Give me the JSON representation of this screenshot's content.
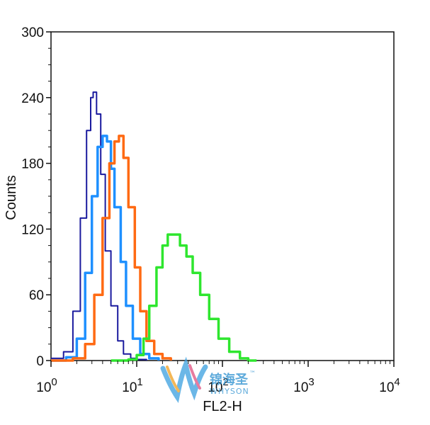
{
  "chart_data": {
    "type": "line",
    "title": "",
    "xlabel": "FL2-H",
    "ylabel": "Counts",
    "x_scale": "log",
    "xlim": [
      1,
      10000
    ],
    "ylim": [
      0,
      300
    ],
    "x_ticks": [
      {
        "value": 1,
        "base": "10",
        "exp": "0"
      },
      {
        "value": 10,
        "base": "10",
        "exp": "1"
      },
      {
        "value": 100,
        "base": "10",
        "exp": "2"
      },
      {
        "value": 1000,
        "base": "10",
        "exp": "3"
      },
      {
        "value": 10000,
        "base": "10",
        "exp": "4"
      }
    ],
    "y_ticks": [
      0,
      60,
      120,
      180,
      240,
      300
    ],
    "grid": false,
    "series": [
      {
        "color": "#1a1a9e",
        "x": [
          1,
          1.4,
          1.8,
          2.2,
          2.6,
          2.9,
          3.1,
          3.4,
          3.8,
          4.3,
          5,
          6,
          7,
          8.5,
          10,
          13
        ],
        "y": [
          2,
          8,
          45,
          130,
          210,
          240,
          245,
          225,
          170,
          100,
          50,
          18,
          6,
          2,
          1,
          0
        ]
      },
      {
        "color": "#1e90ff",
        "x": [
          1,
          1.5,
          2,
          2.5,
          3,
          3.5,
          4,
          4.5,
          5,
          5.5,
          6.5,
          7.5,
          9,
          11,
          14,
          18
        ],
        "y": [
          0,
          3,
          20,
          80,
          150,
          195,
          205,
          200,
          175,
          140,
          90,
          50,
          20,
          6,
          2,
          0
        ]
      },
      {
        "color": "#ff6a13",
        "x": [
          1,
          1.8,
          2.5,
          3.2,
          4,
          4.8,
          5.5,
          6.2,
          7,
          8,
          9.5,
          11,
          13,
          16,
          20,
          25
        ],
        "y": [
          0,
          2,
          15,
          60,
          130,
          180,
          200,
          205,
          185,
          140,
          85,
          45,
          18,
          6,
          2,
          0
        ]
      },
      {
        "color": "#2ee62e",
        "x": [
          5,
          8,
          10,
          12,
          14,
          17,
          20,
          23,
          27,
          32,
          38,
          45,
          55,
          70,
          90,
          120,
          160,
          200,
          250
        ],
        "y": [
          0,
          1,
          5,
          20,
          50,
          85,
          105,
          115,
          115,
          105,
          95,
          80,
          60,
          38,
          20,
          8,
          2,
          0,
          0
        ]
      }
    ]
  },
  "watermark": {
    "chinese": "锦海圣",
    "trademark": "™",
    "brand": "WHYSON"
  }
}
